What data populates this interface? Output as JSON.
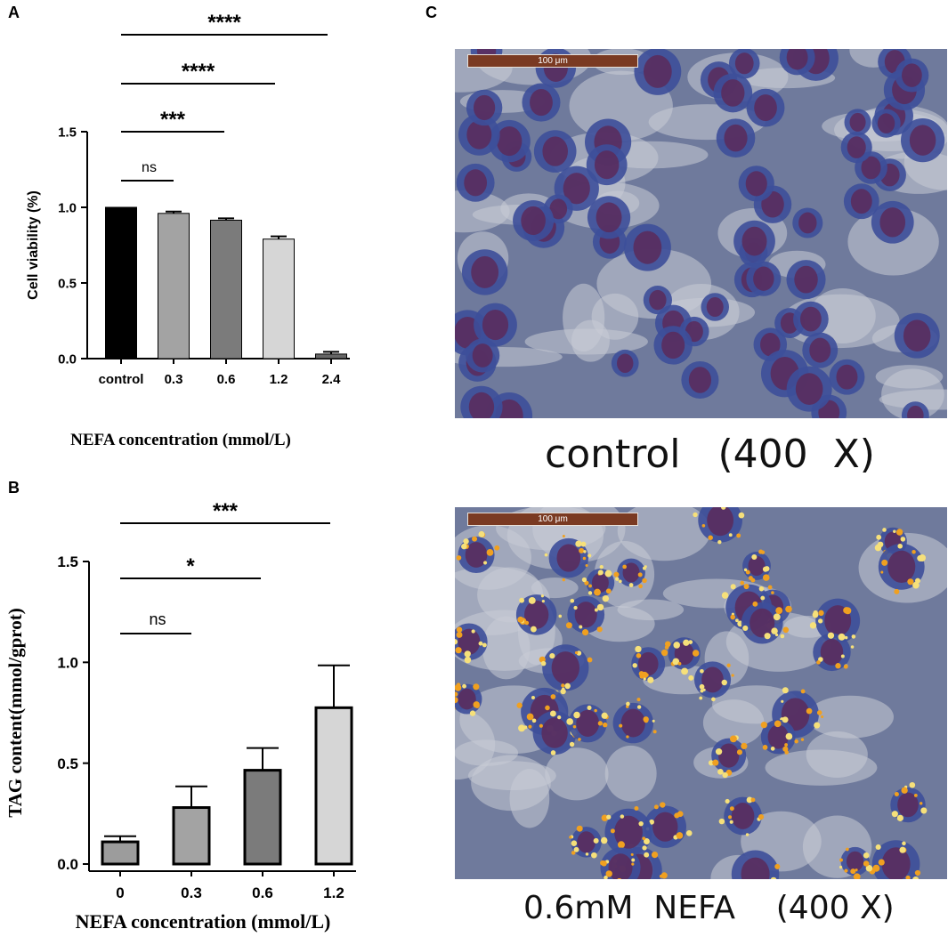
{
  "panels": {
    "a": "A",
    "b": "B",
    "c": "C"
  },
  "chart_data": [
    {
      "type": "bar",
      "panel": "A",
      "categories": [
        "control",
        "0.3",
        "0.6",
        "1.2",
        "2.4"
      ],
      "values": [
        1.0,
        0.96,
        0.915,
        0.79,
        0.03
      ],
      "errors": [
        0,
        0.012,
        0.012,
        0.018,
        0.015
      ],
      "ylabel": "Cell viability (%)",
      "xlabel": "NEFA concentration (mmol/L)",
      "ylim": [
        0,
        1.5
      ],
      "yticks": [
        "0.0",
        "0.5",
        "1.0",
        "1.5"
      ],
      "bar_colors": [
        "#000000",
        "#a3a3a3",
        "#7b7b7b",
        "#d6d6d6",
        "#666666"
      ],
      "significance": [
        {
          "from": 0,
          "to": 1,
          "label": "ns"
        },
        {
          "from": 0,
          "to": 2,
          "label": "***"
        },
        {
          "from": 0,
          "to": 3,
          "label": "****"
        },
        {
          "from": 0,
          "to": 4,
          "label": "****"
        }
      ]
    },
    {
      "type": "bar",
      "panel": "B",
      "categories": [
        "0",
        "0.3",
        "0.6",
        "1.2"
      ],
      "values": [
        0.11,
        0.28,
        0.465,
        0.775
      ],
      "errors": [
        0.028,
        0.105,
        0.11,
        0.21
      ],
      "ylabel": "TAG content(mmol/gprot)",
      "xlabel": "NEFA concentration (mmol/L)",
      "ylim": [
        0,
        1.5
      ],
      "yticks": [
        "0.0",
        "0.5",
        "1.0",
        "1.5"
      ],
      "bar_colors": [
        "#9c9c9c",
        "#a3a3a3",
        "#7b7b7b",
        "#d6d6d6"
      ],
      "significance": [
        {
          "from": 0,
          "to": 1,
          "label": "ns"
        },
        {
          "from": 0,
          "to": 2,
          "label": "*"
        },
        {
          "from": 0,
          "to": 3,
          "label": "***"
        }
      ]
    }
  ],
  "micrographs": [
    {
      "scale_bar": "100 μm",
      "caption": "control   (400  X)"
    },
    {
      "scale_bar": "100 μm",
      "caption": "0.6mM  NEFA    (400 X)"
    }
  ],
  "colors": {
    "micro_background": "#6f7a9c",
    "nucleus": "#5a2a5a",
    "cell": "#3d4f9a",
    "lipid_droplet": "#f0a020"
  }
}
